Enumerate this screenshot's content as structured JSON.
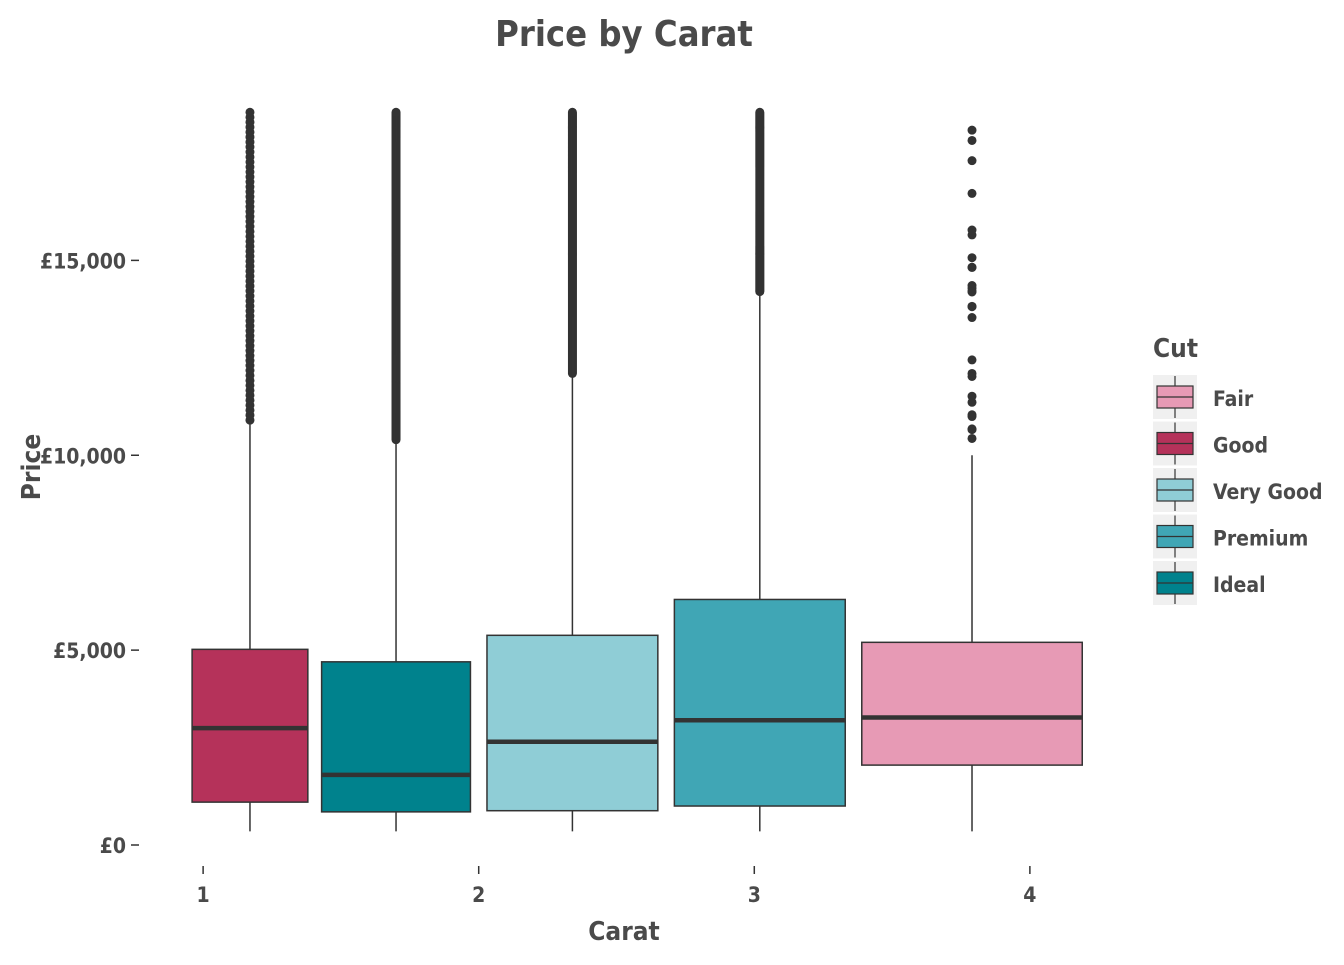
{
  "chart_data": {
    "type": "box",
    "title": "Price by Carat",
    "xlabel": "Carat",
    "ylabel": "Price",
    "ylim": [
      0,
      19500
    ],
    "xlim": [
      0.8,
      4.2
    ],
    "x_ticks": [
      "1",
      "2",
      "3",
      "4"
    ],
    "y_ticks": [
      "£0",
      "£5,000",
      "£10,000",
      "£15,000"
    ],
    "y_tick_values": [
      0,
      5000,
      10000,
      15000
    ],
    "grid": false,
    "legend": {
      "title": "Cut",
      "position": "right",
      "entries": [
        {
          "label": "Fair",
          "color": "#e79ab5"
        },
        {
          "label": "Good",
          "color": "#b5325a"
        },
        {
          "label": "Very Good",
          "color": "#8fcdd6"
        },
        {
          "label": "Premium",
          "color": "#40a6b5"
        },
        {
          "label": "Ideal",
          "color": "#00828d"
        }
      ]
    },
    "boxes": [
      {
        "cut": "Good",
        "x_from": 0.96,
        "x_to": 1.38,
        "whisker_low": 350,
        "q1": 1100,
        "median": 3000,
        "q3": 5020,
        "whisker_high": 10900,
        "outlier_low": 10900,
        "outlier_high": 18800,
        "outlier_density": "medium"
      },
      {
        "cut": "Ideal",
        "x_from": 1.43,
        "x_to": 1.97,
        "whisker_low": 350,
        "q1": 850,
        "median": 1800,
        "q3": 4700,
        "whisker_high": 10400,
        "outlier_low": 10400,
        "outlier_high": 18800,
        "outlier_density": "high"
      },
      {
        "cut": "Very Good",
        "x_from": 2.03,
        "x_to": 2.65,
        "whisker_low": 350,
        "q1": 880,
        "median": 2650,
        "q3": 5380,
        "whisker_high": 12100,
        "outlier_low": 12100,
        "outlier_high": 18800,
        "outlier_density": "high"
      },
      {
        "cut": "Premium",
        "x_from": 2.71,
        "x_to": 3.33,
        "whisker_low": 350,
        "q1": 1000,
        "median": 3200,
        "q3": 6300,
        "whisker_high": 14200,
        "outlier_low": 14200,
        "outlier_high": 18800,
        "outlier_density": "high"
      },
      {
        "cut": "Fair",
        "x_from": 3.39,
        "x_to": 4.19,
        "whisker_low": 350,
        "q1": 2050,
        "median": 3270,
        "q3": 5200,
        "whisker_high": 10000,
        "outlier_low": 10000,
        "outlier_high": 18600,
        "outlier_density": "low"
      }
    ],
    "colors": {
      "text": "#4a4a4a",
      "stroke": "#333333",
      "legend_key_bg": "#f0f0f0"
    }
  }
}
